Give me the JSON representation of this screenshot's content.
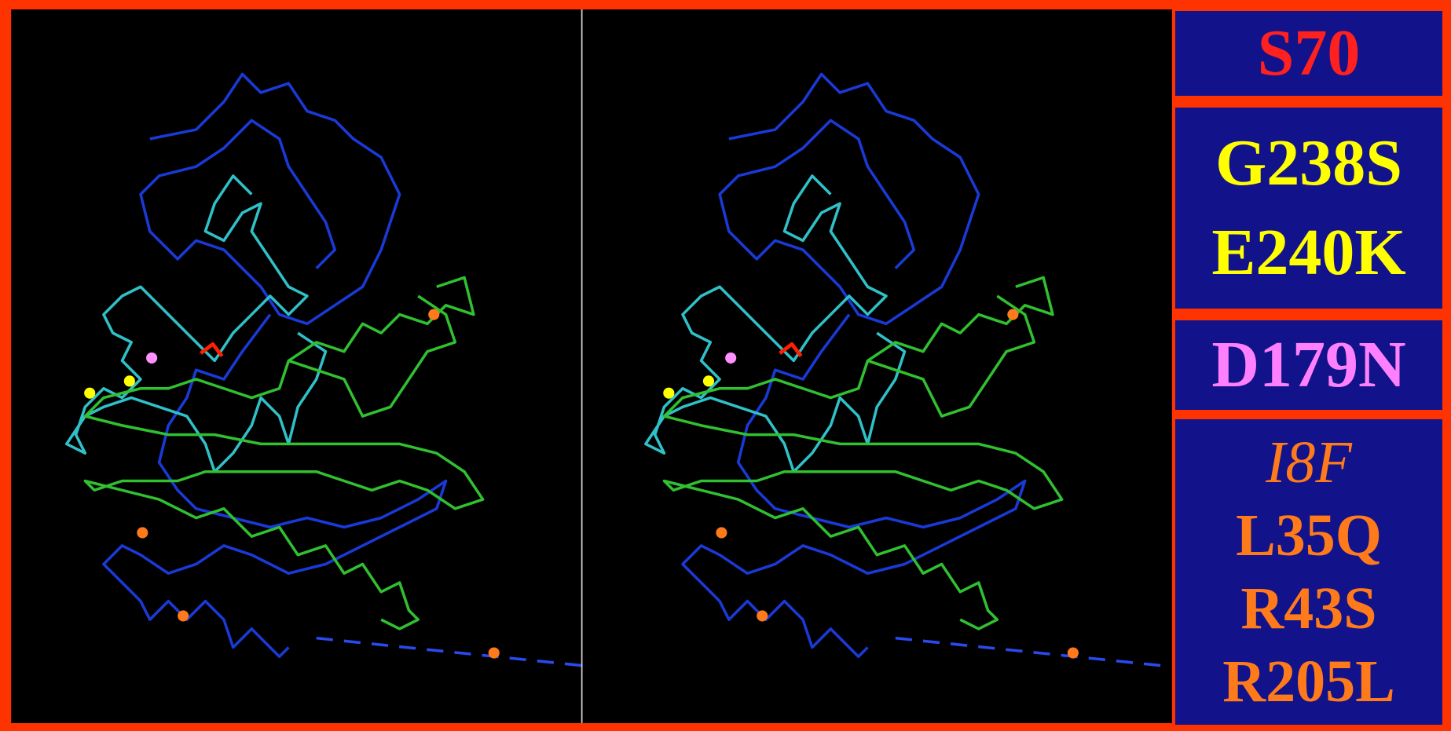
{
  "labels": {
    "groups": [
      [
        "S70"
      ],
      [
        "G238S",
        "E240K"
      ],
      [
        "D179N"
      ],
      [
        "I8F",
        "L35Q",
        "R43S",
        "R205L"
      ]
    ]
  }
}
